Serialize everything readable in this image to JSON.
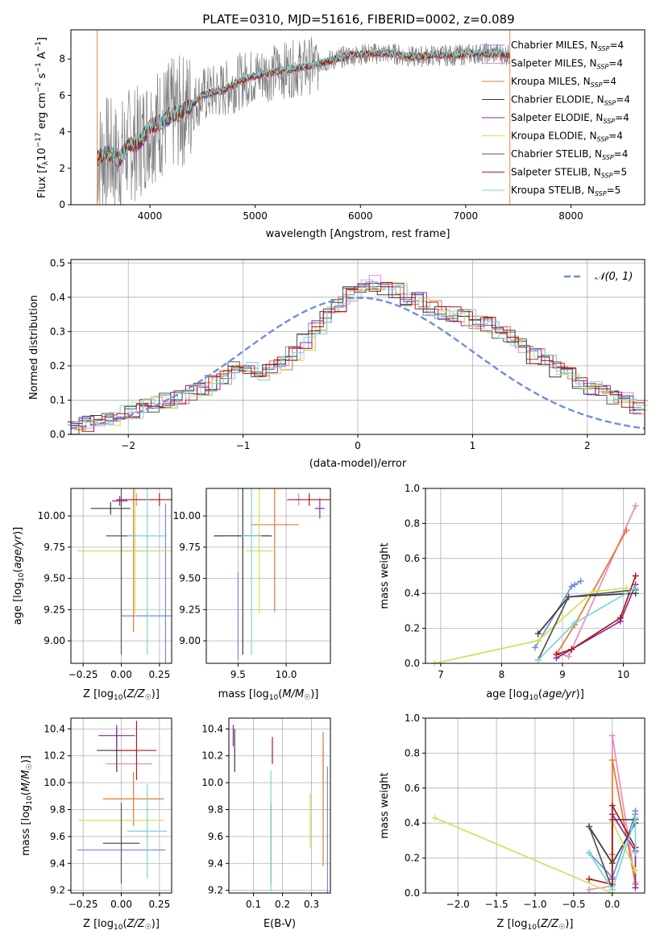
{
  "colors": {
    "chabrier_miles": "#6f8fd8",
    "salpeter_miles": "#e88ac2",
    "kroupa_miles": "#e8782c",
    "chabrier_elodie": "#3a3a3a",
    "salpeter_elodie": "#8c2aa8",
    "kroupa_elodie": "#cde35a",
    "chabrier_stelib": "#555555",
    "salpeter_stelib": "#b01818",
    "kroupa_stelib": "#78d6d6",
    "data_gray": "#7f7f7f",
    "grid": "#b0b0b0"
  },
  "chart_data": [
    {
      "type": "line",
      "title": "PLATE=0310, MJD=51616, FIBERID=0002, z=0.089",
      "xlabel": "wavelength [Angstrom, rest frame]",
      "ylabel": "Flux [fλ10⁻¹⁷ erg cm⁻² s⁻¹ A⁻¹]",
      "xlim": [
        3250,
        8700
      ],
      "ylim": [
        0,
        9.6
      ],
      "xticks": [
        "4000",
        "5000",
        "6000",
        "7000",
        "8000"
      ],
      "yticks": [
        "0",
        "2",
        "4",
        "6",
        "8"
      ],
      "legend_position": "top-right",
      "legend": [
        "Chabrier MILES, N_SSP=4",
        "Salpeter MILES, N_SSP=4",
        "Kroupa MILES, N_SSP=4",
        "Chabrier ELODIE, N_SSP=4",
        "Salpeter ELODIE, N_SSP=4",
        "Kroupa ELODIE, N_SSP=4",
        "Chabrier STELIB, N_SSP=4",
        "Salpeter STELIB, N_SSP=5",
        "Kroupa STELIB, N_SSP=5"
      ],
      "model_continuum": {
        "x": [
          3500,
          3600,
          3700,
          3800,
          3900,
          4000,
          4100,
          4200,
          4300,
          4400,
          4500,
          4700,
          4900,
          5100,
          5300,
          5500,
          5700,
          5900,
          6100,
          6300,
          6500,
          6700,
          6900,
          7100,
          7300,
          7420
        ],
        "y": [
          2.6,
          2.9,
          2.4,
          3.3,
          3.4,
          4.3,
          4.5,
          4.9,
          5.1,
          5.5,
          6.0,
          6.3,
          6.9,
          7.2,
          7.4,
          7.6,
          7.9,
          8.2,
          8.3,
          8.3,
          8.1,
          8.2,
          8.2,
          8.3,
          8.3,
          8.2
        ]
      }
    },
    {
      "type": "bar",
      "xlabel": "(data-model)/error",
      "ylabel": "Normed distribution",
      "xlim": [
        -2.5,
        2.5
      ],
      "ylim": [
        0,
        0.51
      ],
      "xticks": [
        "−2",
        "−1",
        "0",
        "1",
        "2"
      ],
      "yticks": [
        "0.0",
        "0.1",
        "0.2",
        "0.3",
        "0.4",
        "0.5"
      ],
      "legend": [
        "N(0, 1)"
      ],
      "legend_position": "top-right",
      "bin_width": 0.1,
      "histogram_mean": [
        0.02,
        0.03,
        0.04,
        0.05,
        0.06,
        0.07,
        0.08,
        0.09,
        0.1,
        0.11,
        0.12,
        0.13,
        0.15,
        0.17,
        0.19,
        0.2,
        0.18,
        0.19,
        0.21,
        0.24,
        0.27,
        0.31,
        0.35,
        0.38,
        0.41,
        0.43,
        0.44,
        0.43,
        0.42,
        0.4,
        0.39,
        0.37,
        0.36,
        0.35,
        0.34,
        0.33,
        0.32,
        0.3,
        0.28,
        0.26,
        0.23,
        0.21,
        0.19,
        0.17,
        0.15,
        0.13,
        0.12,
        0.11,
        0.1,
        0.08
      ]
    },
    {
      "type": "scatter",
      "xlabel": "Z [log10(Z/Z☉)]",
      "ylabel": "age  [log10(age/yr)]",
      "xlim": [
        -0.33,
        0.33
      ],
      "ylim": [
        8.82,
        10.22
      ],
      "xticks": [
        "−0.25",
        "0.00",
        "0.25"
      ],
      "yticks": [
        "9.00",
        "9.25",
        "9.50",
        "9.75",
        "10.00"
      ],
      "points": [
        {
          "series": "Chabrier MILES",
          "x": 0.29,
          "y": 9.2,
          "xerr": 0.29,
          "yerr": 0.9
        },
        {
          "series": "Salpeter MILES",
          "x": 0.1,
          "y": 10.13,
          "xerr": 0.14,
          "yerr": 0.05
        },
        {
          "series": "Kroupa MILES",
          "x": 0.08,
          "y": 9.72,
          "xerr": 0.08,
          "yerr": 0.65
        },
        {
          "series": "Chabrier ELODIE",
          "x": -0.07,
          "y": 10.06,
          "xerr": 0.13,
          "yerr": 0.05
        },
        {
          "series": "Salpeter ELODIE",
          "x": -0.01,
          "y": 10.12,
          "xerr": 0.05,
          "yerr": 0.04
        },
        {
          "series": "Kroupa ELODIE",
          "x": 0.09,
          "y": 9.72,
          "xerr": 0.38,
          "yerr": 0.5
        },
        {
          "series": "Chabrier STELIB",
          "x": 0.0,
          "y": 9.84,
          "xerr": 0.1,
          "yerr": 0.95
        },
        {
          "series": "Salpeter STELIB",
          "x": 0.25,
          "y": 10.13,
          "xerr": 0.28,
          "yerr": 0.05
        },
        {
          "series": "Kroupa STELIB",
          "x": 0.17,
          "y": 9.84,
          "xerr": 0.13,
          "yerr": 0.95
        }
      ]
    },
    {
      "type": "scatter",
      "xlabel": "mass [log10(M/M☉)]",
      "ylabel": "",
      "xlim": [
        9.17,
        10.46
      ],
      "ylim": [
        8.82,
        10.22
      ],
      "xticks": [
        "9.5",
        "10.0"
      ],
      "yticks": [
        "9.00",
        "9.25",
        "9.50",
        "9.75",
        "10.00"
      ],
      "points": [
        {
          "series": "Chabrier MILES",
          "x": 9.5,
          "y": 9.2,
          "xerr": 0.0,
          "yerr": 0.35
        },
        {
          "series": "Salpeter MILES",
          "x": 10.13,
          "y": 10.13,
          "xerr": 0.03,
          "yerr": 0.05
        },
        {
          "series": "Kroupa MILES",
          "x": 9.88,
          "y": 9.93,
          "xerr": 0.25,
          "yerr": 0.7
        },
        {
          "series": "Chabrier ELODIE",
          "x": 9.55,
          "y": 9.84,
          "xerr": 0.3,
          "yerr": 0.95
        },
        {
          "series": "Salpeter ELODIE",
          "x": 10.35,
          "y": 10.06,
          "xerr": 0.05,
          "yerr": 0.08
        },
        {
          "series": "Kroupa ELODIE",
          "x": 9.72,
          "y": 9.72,
          "xerr": 0.14,
          "yerr": 0.5
        },
        {
          "series": "Chabrier STELIB",
          "x": 9.55,
          "y": 9.84,
          "xerr": 0.22,
          "yerr": 0.95
        },
        {
          "series": "Salpeter STELIB",
          "x": 10.24,
          "y": 10.13,
          "xerr": 0.23,
          "yerr": 0.05
        },
        {
          "series": "Kroupa STELIB",
          "x": 9.64,
          "y": 9.84,
          "xerr": 0.1,
          "yerr": 0.95
        }
      ]
    },
    {
      "type": "line",
      "xlabel": "age  [log10(age/yr)]",
      "ylabel": "mass weight",
      "xlim": [
        6.75,
        10.35
      ],
      "ylim": [
        0,
        1.0
      ],
      "xticks": [
        "7",
        "8",
        "9",
        "10"
      ],
      "yticks": [
        "0.0",
        "0.2",
        "0.4",
        "0.6",
        "0.8",
        "1.0"
      ],
      "series": [
        {
          "name": "Chabrier MILES",
          "x": [
            8.55,
            9.15,
            9.2,
            9.3
          ],
          "y": [
            0.09,
            0.44,
            0.45,
            0.47
          ]
        },
        {
          "name": "Salpeter MILES",
          "x": [
            8.9,
            9.1,
            10.2
          ],
          "y": [
            0.06,
            0.04,
            0.9
          ]
        },
        {
          "name": "Kroupa MILES",
          "x": [
            8.9,
            9.2,
            10.05
          ],
          "y": [
            0.05,
            0.22,
            0.76
          ]
        },
        {
          "name": "Chabrier ELODIE",
          "x": [
            8.6,
            9.1,
            10.2
          ],
          "y": [
            0.17,
            0.38,
            0.4
          ]
        },
        {
          "name": "Salpeter ELODIE",
          "x": [
            8.9,
            9.15,
            9.95,
            10.2
          ],
          "y": [
            0.03,
            0.08,
            0.24,
            0.45
          ]
        },
        {
          "name": "Kroupa ELODIE",
          "x": [
            6.9,
            8.6,
            9.5,
            10.05
          ],
          "y": [
            0.0,
            0.13,
            0.41,
            0.43
          ]
        },
        {
          "name": "Chabrier STELIB",
          "x": [
            8.6,
            9.1,
            10.2
          ],
          "y": [
            0.02,
            0.38,
            0.42
          ]
        },
        {
          "name": "Salpeter STELIB",
          "x": [
            8.9,
            9.15,
            9.95,
            10.2
          ],
          "y": [
            0.05,
            0.08,
            0.26,
            0.5
          ]
        },
        {
          "name": "Kroupa STELIB",
          "x": [
            8.6,
            9.2,
            10.2
          ],
          "y": [
            0.02,
            0.23,
            0.43
          ]
        }
      ]
    },
    {
      "type": "scatter",
      "xlabel": "Z [log10(Z/Z☉)]",
      "ylabel": "mass [log10(M/M☉)]",
      "xlim": [
        -0.33,
        0.33
      ],
      "ylim": [
        9.18,
        10.48
      ],
      "xticks": [
        "−0.25",
        "0.00",
        "0.25"
      ],
      "yticks": [
        "9.2",
        "9.4",
        "9.6",
        "9.8",
        "10.0",
        "10.2",
        "10.4"
      ],
      "points": [
        {
          "series": "Chabrier MILES",
          "x": 0.0,
          "y": 9.5,
          "xerr": 0.29,
          "yerr": 0.0
        },
        {
          "series": "Salpeter MILES",
          "x": 0.05,
          "y": 10.14,
          "xerr": 0.15,
          "yerr": 0.0
        },
        {
          "series": "Kroupa MILES",
          "x": 0.08,
          "y": 9.88,
          "xerr": 0.2,
          "yerr": 0.2
        },
        {
          "series": "Chabrier ELODIE",
          "x": -0.03,
          "y": 10.24,
          "xerr": 0.13,
          "yerr": 0.16
        },
        {
          "series": "Salpeter ELODIE",
          "x": -0.03,
          "y": 10.35,
          "xerr": 0.12,
          "yerr": 0.08
        },
        {
          "series": "Kroupa ELODIE",
          "x": 0.0,
          "y": 9.72,
          "xerr": 0.28,
          "yerr": 0.0
        },
        {
          "series": "Chabrier STELIB",
          "x": 0.0,
          "y": 9.55,
          "xerr": 0.12,
          "yerr": 0.3
        },
        {
          "series": "Salpeter STELIB",
          "x": 0.1,
          "y": 10.24,
          "xerr": 0.13,
          "yerr": 0.22
        },
        {
          "series": "Kroupa STELIB",
          "x": 0.17,
          "y": 9.64,
          "xerr": 0.13,
          "yerr": 0.35
        }
      ]
    },
    {
      "type": "scatter",
      "xlabel": "E(B-V)",
      "ylabel": "",
      "xlim": [
        0.015,
        0.365
      ],
      "ylim": [
        9.18,
        10.48
      ],
      "xticks": [
        "0.1",
        "0.2",
        "0.3"
      ],
      "yticks": [
        "9.2",
        "9.4",
        "9.6",
        "9.8",
        "10.0",
        "10.2",
        "10.4"
      ],
      "points": [
        {
          "series": "Chabrier MILES",
          "x": 0.355,
          "y": 9.5,
          "yerr": 0.62
        },
        {
          "series": "Salpeter MILES",
          "x": 0.34,
          "y": 10.14,
          "yerr": 0.12
        },
        {
          "series": "Kroupa MILES",
          "x": 0.34,
          "y": 9.88,
          "yerr": 0.5
        },
        {
          "series": "Chabrier ELODIE",
          "x": 0.035,
          "y": 10.24,
          "yerr": 0.16
        },
        {
          "series": "Salpeter ELODIE",
          "x": 0.03,
          "y": 10.35,
          "yerr": 0.08
        },
        {
          "series": "Kroupa ELODIE",
          "x": 0.295,
          "y": 9.72,
          "yerr": 0.2
        },
        {
          "series": "Chabrier STELIB",
          "x": 0.16,
          "y": 9.55,
          "yerr": 0.3
        },
        {
          "series": "Salpeter STELIB",
          "x": 0.165,
          "y": 10.24,
          "yerr": 0.1
        },
        {
          "series": "Kroupa STELIB",
          "x": 0.16,
          "y": 9.64,
          "yerr": 0.45
        }
      ]
    },
    {
      "type": "line",
      "xlabel": "Z [log10(Z/Z☉)]",
      "ylabel": "mass weight",
      "xlim": [
        -2.42,
        0.42
      ],
      "ylim": [
        0,
        1.0
      ],
      "xticks": [
        "−2.0",
        "−1.5",
        "−1.0",
        "−0.5",
        "0.0"
      ],
      "yticks": [
        "0.0",
        "0.2",
        "0.4",
        "0.6",
        "0.8",
        "1.0"
      ],
      "series": [
        {
          "name": "Chabrier MILES",
          "x": [
            -0.3,
            0.0,
            0.3,
            0.3
          ],
          "y": [
            0.23,
            0.09,
            0.45,
            0.47
          ]
        },
        {
          "name": "Salpeter MILES",
          "x": [
            -0.3,
            0.0,
            0.0,
            0.3
          ],
          "y": [
            0.02,
            0.04,
            0.9,
            0.06
          ]
        },
        {
          "name": "Kroupa MILES",
          "x": [
            0.0,
            0.0,
            0.3
          ],
          "y": [
            0.22,
            0.76,
            0.05
          ]
        },
        {
          "name": "Chabrier ELODIE",
          "x": [
            -0.3,
            0.0,
            0.3
          ],
          "y": [
            0.38,
            0.17,
            0.4
          ]
        },
        {
          "name": "Salpeter ELODIE",
          "x": [
            0.0,
            0.0,
            0.3,
            0.3
          ],
          "y": [
            0.08,
            0.45,
            0.24,
            0.03
          ]
        },
        {
          "name": "Kroupa ELODIE",
          "x": [
            -2.3,
            0.0,
            0.0,
            0.3
          ],
          "y": [
            0.43,
            0.0,
            0.41,
            0.13
          ]
        },
        {
          "name": "Chabrier STELIB",
          "x": [
            -0.3,
            0.0,
            0.0,
            0.3
          ],
          "y": [
            0.38,
            0.02,
            0.42,
            0.42
          ]
        },
        {
          "name": "Salpeter STELIB",
          "x": [
            -0.3,
            0.0,
            0.0,
            0.3
          ],
          "y": [
            0.08,
            0.05,
            0.5,
            0.26
          ]
        },
        {
          "name": "Kroupa STELIB",
          "x": [
            -0.3,
            0.0,
            0.3,
            0.3
          ],
          "y": [
            0.23,
            0.02,
            0.43,
            0.23
          ]
        }
      ]
    }
  ]
}
